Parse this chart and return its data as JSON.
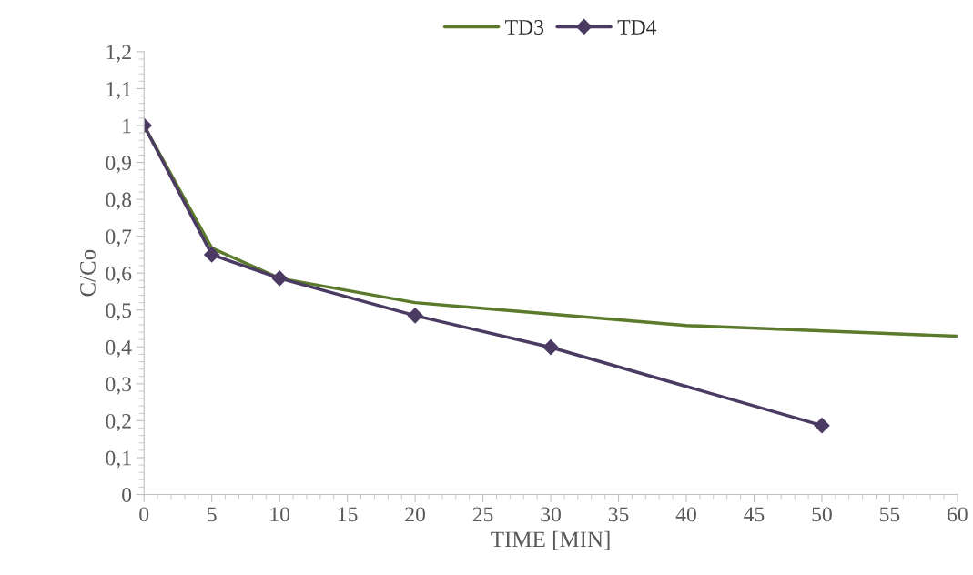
{
  "chart_data": {
    "type": "line",
    "xlabel": "TIME [MIN]",
    "ylabel": "C/Co",
    "series": [
      {
        "name": "TD3",
        "color": "#5b7a2c",
        "marker": "none",
        "x": [
          0,
          5,
          10,
          20,
          40,
          60
        ],
        "values": [
          1.0,
          0.668,
          0.586,
          0.52,
          0.458,
          0.429
        ]
      },
      {
        "name": "TD4",
        "color": "#4b3b63",
        "marker": "diamond",
        "x": [
          0,
          5,
          10,
          20,
          30,
          50
        ],
        "values": [
          1.0,
          0.65,
          0.586,
          0.485,
          0.399,
          0.187
        ]
      }
    ],
    "xlim": [
      0,
      60
    ],
    "xticks": [
      0,
      5,
      10,
      15,
      20,
      25,
      30,
      35,
      40,
      45,
      50,
      55,
      60
    ],
    "ylim": [
      0,
      1.2
    ],
    "yticks": [
      0,
      {
        "value": 0.1,
        "label": "0,1"
      },
      {
        "value": 0.2,
        "label": "0,2"
      },
      {
        "value": 0.3,
        "label": "0,3"
      },
      {
        "value": 0.4,
        "label": "0,4"
      },
      {
        "value": 0.5,
        "label": "0,5"
      },
      {
        "value": 0.6,
        "label": "0,6"
      },
      {
        "value": 0.7,
        "label": "0,7"
      },
      {
        "value": 0.8,
        "label": "0,8"
      },
      {
        "value": 0.9,
        "label": "0,9"
      },
      1,
      {
        "value": 1.1,
        "label": "1,1"
      },
      {
        "value": 1.2,
        "label": "1,2"
      }
    ],
    "grid": false,
    "legend": "top",
    "line_style": "solid"
  }
}
